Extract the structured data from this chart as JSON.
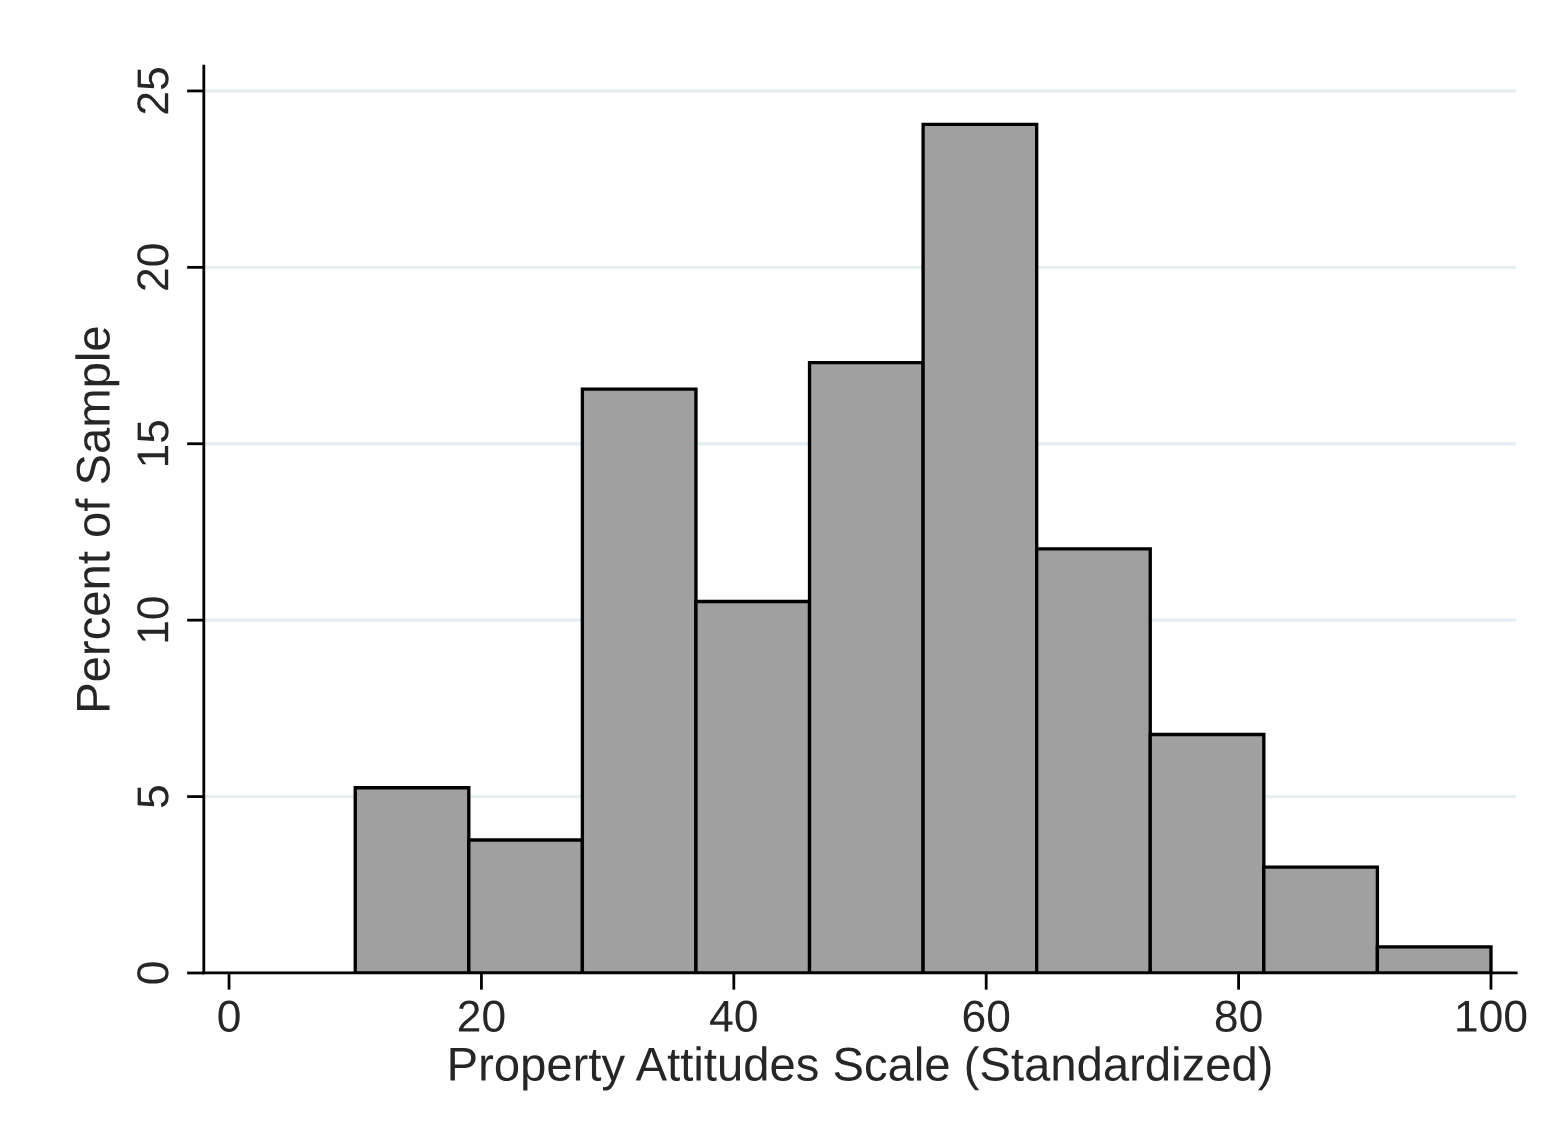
{
  "chart_data": {
    "type": "histogram",
    "xlabel": "Property Attitudes Scale (Standardized)",
    "ylabel": "Percent of Sample",
    "bins": [
      10,
      19,
      28,
      37,
      46,
      55,
      64,
      73,
      82,
      91,
      100
    ],
    "values": [
      5.25,
      3.77,
      16.55,
      10.53,
      17.3,
      24.05,
      12.02,
      6.76,
      3.0,
      0.74
    ],
    "color": "#a0a0a0",
    "xlim": [
      -2,
      102
    ],
    "xticks": [
      0,
      20,
      40,
      60,
      80,
      100
    ],
    "ylim": [
      0,
      25.7
    ],
    "yticks": [
      0,
      5,
      10,
      15,
      20,
      25
    ],
    "grid": "y"
  }
}
